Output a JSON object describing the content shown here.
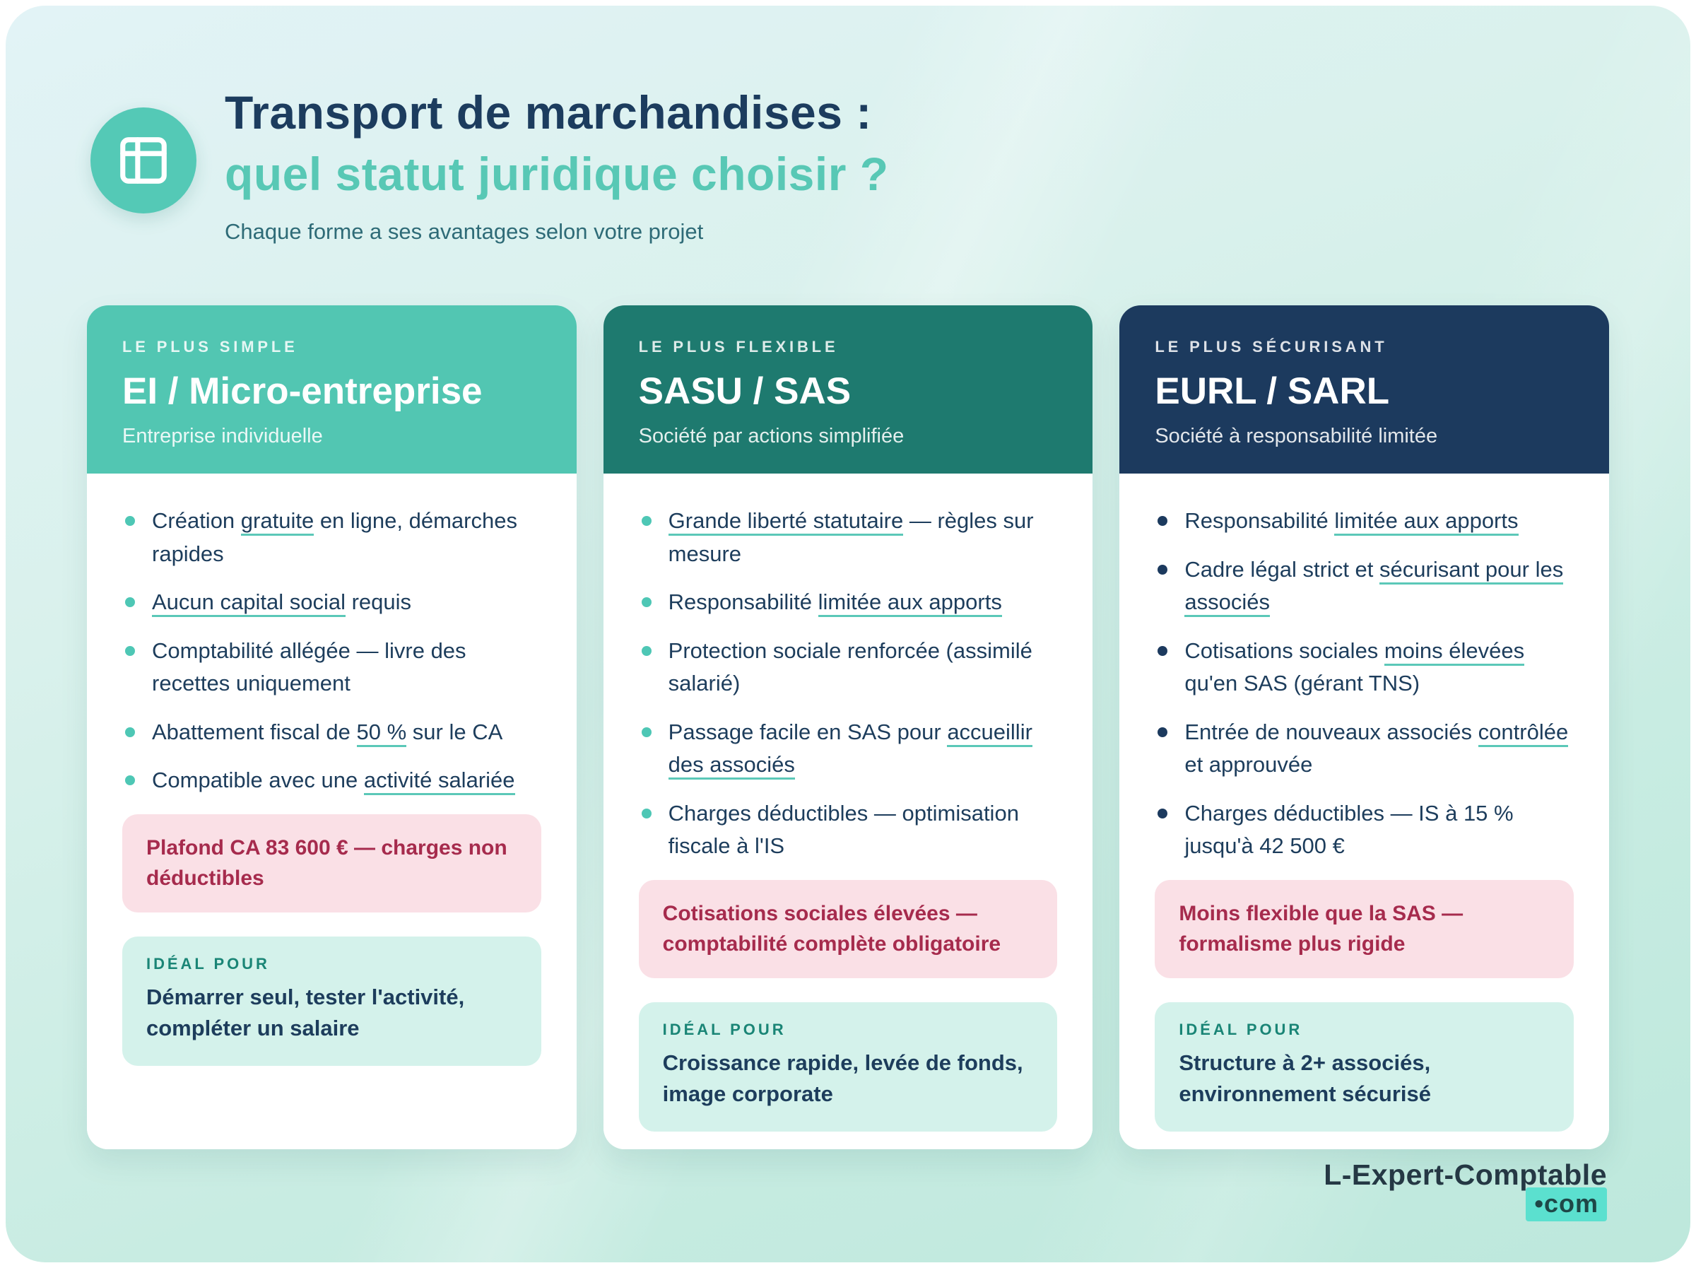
{
  "theme": {
    "accent_underline": "#5BC8B8",
    "title_navy": "#1C3C5E",
    "title_teal": "#58C8B5",
    "warning_bg": "#FAE0E6",
    "warning_text": "#A62B4D",
    "ideal_bg": "#D4F2EB",
    "ideal_label_color": "#1A8576"
  },
  "header": {
    "icon": "table-layout-icon",
    "title_line1": "Transport de marchandises :",
    "title_line2": "quel statut juridique choisir ?",
    "subtitle": "Chaque forme a ses avantages selon votre projet"
  },
  "cards": [
    {
      "tag": "LE PLUS SIMPLE",
      "title": "EI / Micro-entreprise",
      "subtitle": "Entreprise individuelle",
      "header_bg": "#52C6B2",
      "bullet_color": "#4EC7B5",
      "bullets": [
        [
          {
            "t": "Création "
          },
          {
            "t": "gratuite",
            "u": true
          },
          {
            "t": " en ligne, démarches rapides"
          }
        ],
        [
          {
            "t": "Aucun capital social",
            "u": true
          },
          {
            "t": " requis"
          }
        ],
        [
          {
            "t": "Comptabilité allégée — livre des recettes uniquement"
          }
        ],
        [
          {
            "t": "Abattement fiscal de "
          },
          {
            "t": "50 %",
            "u": true
          },
          {
            "t": " sur le CA"
          }
        ],
        [
          {
            "t": "Compatible avec une "
          },
          {
            "t": "activité salariée",
            "u": true
          }
        ]
      ],
      "warning": "Plafond CA 83 600 € — charges non déductibles",
      "ideal_label": "IDÉAL POUR",
      "ideal": "Démarrer seul, tester l'activité, compléter un salaire"
    },
    {
      "tag": "LE PLUS FLEXIBLE",
      "title": "SASU / SAS",
      "subtitle": "Société par actions simplifiée",
      "header_bg": "#1E7A6F",
      "bullet_color": "#4EC7B5",
      "bullets": [
        [
          {
            "t": "Grande liberté statutaire",
            "u": true
          },
          {
            "t": " — règles sur mesure"
          }
        ],
        [
          {
            "t": "Responsabilité "
          },
          {
            "t": "limitée aux apports",
            "u": true
          }
        ],
        [
          {
            "t": "Protection sociale renforcée (assimilé salarié)"
          }
        ],
        [
          {
            "t": "Passage facile en SAS pour "
          },
          {
            "t": "accueillir des associés",
            "u": true
          }
        ],
        [
          {
            "t": "Charges déductibles — optimisation fiscale à l'IS"
          }
        ]
      ],
      "warning": "Cotisations sociales élevées — comptabilité complète obligatoire",
      "ideal_label": "IDÉAL POUR",
      "ideal": "Croissance rapide, levée de fonds, image corporate"
    },
    {
      "tag": "LE PLUS SÉCURISANT",
      "title": "EURL / SARL",
      "subtitle": "Société à responsabilité limitée",
      "header_bg": "#1C3A5E",
      "bullet_color": "#1C3A5E",
      "bullets": [
        [
          {
            "t": "Responsabilité "
          },
          {
            "t": "limitée aux apports",
            "u": true
          }
        ],
        [
          {
            "t": "Cadre légal strict et "
          },
          {
            "t": "sécurisant pour les associés",
            "u": true
          }
        ],
        [
          {
            "t": "Cotisations sociales "
          },
          {
            "t": "moins élevées",
            "u": true
          },
          {
            "t": " qu'en SAS (gérant TNS)"
          }
        ],
        [
          {
            "t": "Entrée de nouveaux associés "
          },
          {
            "t": "contrôlée",
            "u": true
          },
          {
            "t": " et approuvée"
          }
        ],
        [
          {
            "t": "Charges déductibles — IS à 15 % jusqu'à 42 500 €"
          }
        ]
      ],
      "warning": "Moins flexible que la SAS — formalisme plus rigide",
      "ideal_label": "IDÉAL POUR",
      "ideal": "Structure à 2+ associés, environnement sécurisé"
    }
  ],
  "footer": {
    "logo_main": "L-Expert-Comptable",
    "logo_suffix": "•com"
  }
}
